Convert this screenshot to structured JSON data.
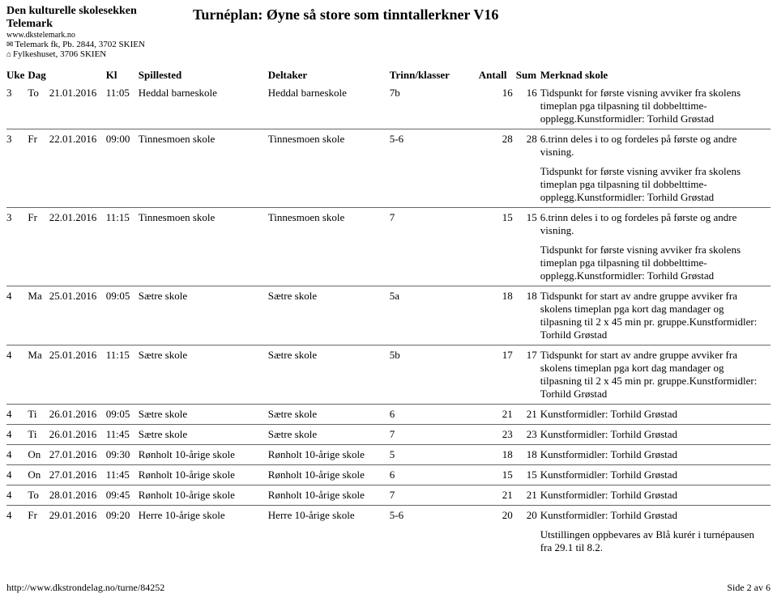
{
  "header": {
    "org_name": "Den kulturelle skolesekken Telemark",
    "url": "www.dkstelemark.no",
    "addr1_sym": "✉",
    "addr1": "Telemark fk, Pb. 2844, 3702 SKIEN",
    "addr2_sym": "⌂",
    "addr2": "Fylkeshuset, 3706 SKIEN",
    "title": "Turnéplan: Øyne så store som tinntallerkner V16"
  },
  "columns": {
    "uke": "Uke",
    "dag": "Dag",
    "kl": "Kl",
    "spillested": "Spillested",
    "deltaker": "Deltaker",
    "trinn": "Trinn/klasser",
    "antall": "Antall",
    "sum": "Sum",
    "merknad": "Merknad skole"
  },
  "rows": [
    {
      "uke": "3",
      "dag": "To",
      "dato": "21.01.2016",
      "kl": "11:05",
      "spillested": "Heddal barneskole",
      "deltaker": "Heddal barneskole",
      "trinn": "7b",
      "antall": "16",
      "sum": "16",
      "merknad": [
        "Tidspunkt for første visning avviker fra skolens timeplan pga tilpasning til dobbelttime-opplegg.Kunstformidler: Torhild Grøstad"
      ]
    },
    {
      "uke": "3",
      "dag": "Fr",
      "dato": "22.01.2016",
      "kl": "09:00",
      "spillested": "Tinnesmoen skole",
      "deltaker": "Tinnesmoen skole",
      "trinn": "5-6",
      "antall": "28",
      "sum": "28",
      "merknad": [
        "6.trinn deles i to og fordeles på første og andre visning.",
        "Tidspunkt for første visning avviker fra skolens timeplan pga tilpasning til dobbelttime-opplegg.Kunstformidler: Torhild Grøstad"
      ]
    },
    {
      "uke": "3",
      "dag": "Fr",
      "dato": "22.01.2016",
      "kl": "11:15",
      "spillested": "Tinnesmoen skole",
      "deltaker": "Tinnesmoen skole",
      "trinn": "7",
      "antall": "15",
      "sum": "15",
      "merknad": [
        "6.trinn deles i to og fordeles på første og andre visning.",
        "Tidspunkt for første visning avviker fra skolens timeplan pga tilpasning til dobbelttime-opplegg.Kunstformidler: Torhild Grøstad"
      ]
    },
    {
      "uke": "4",
      "dag": "Ma",
      "dato": "25.01.2016",
      "kl": "09:05",
      "spillested": "Sætre skole",
      "deltaker": "Sætre skole",
      "trinn": "5a",
      "antall": "18",
      "sum": "18",
      "merknad": [
        "Tidspunkt for start av andre gruppe avviker fra skolens timeplan pga kort dag mandager og tilpasning til 2 x 45 min pr. gruppe.Kunstformidler: Torhild Grøstad"
      ]
    },
    {
      "uke": "4",
      "dag": "Ma",
      "dato": "25.01.2016",
      "kl": "11:15",
      "spillested": "Sætre skole",
      "deltaker": "Sætre skole",
      "trinn": "5b",
      "antall": "17",
      "sum": "17",
      "merknad": [
        "Tidspunkt for start av andre gruppe avviker fra skolens timeplan pga kort dag mandager og tilpasning til 2 x 45 min pr. gruppe.Kunstformidler: Torhild Grøstad"
      ]
    },
    {
      "uke": "4",
      "dag": "Ti",
      "dato": "26.01.2016",
      "kl": "09:05",
      "spillested": "Sætre skole",
      "deltaker": "Sætre skole",
      "trinn": "6",
      "antall": "21",
      "sum": "21",
      "merknad": [
        "Kunstformidler: Torhild Grøstad"
      ]
    },
    {
      "uke": "4",
      "dag": "Ti",
      "dato": "26.01.2016",
      "kl": "11:45",
      "spillested": "Sætre skole",
      "deltaker": "Sætre skole",
      "trinn": "7",
      "antall": "23",
      "sum": "23",
      "merknad": [
        "Kunstformidler: Torhild Grøstad"
      ]
    },
    {
      "uke": "4",
      "dag": "On",
      "dato": "27.01.2016",
      "kl": "09:30",
      "spillested": "Rønholt 10-årige skole",
      "deltaker": "Rønholt 10-årige skole",
      "trinn": "5",
      "antall": "18",
      "sum": "18",
      "merknad": [
        "Kunstformidler: Torhild Grøstad"
      ]
    },
    {
      "uke": "4",
      "dag": "On",
      "dato": "27.01.2016",
      "kl": "11:45",
      "spillested": "Rønholt 10-årige skole",
      "deltaker": "Rønholt 10-årige skole",
      "trinn": "6",
      "antall": "15",
      "sum": "15",
      "merknad": [
        "Kunstformidler: Torhild Grøstad"
      ]
    },
    {
      "uke": "4",
      "dag": "To",
      "dato": "28.01.2016",
      "kl": "09:45",
      "spillested": "Rønholt 10-årige skole",
      "deltaker": "Rønholt 10-årige skole",
      "trinn": "7",
      "antall": "21",
      "sum": "21",
      "merknad": [
        "Kunstformidler: Torhild Grøstad"
      ]
    },
    {
      "uke": "4",
      "dag": "Fr",
      "dato": "29.01.2016",
      "kl": "09:20",
      "spillested": "Herre 10-årige skole",
      "deltaker": "Herre 10-årige skole",
      "trinn": "5-6",
      "antall": "20",
      "sum": "20",
      "merknad": [
        "Kunstformidler: Torhild Grøstad",
        "Utstillingen oppbevares av Blå kurér i turnépausen fra 29.1 til 8.2."
      ]
    }
  ],
  "footer": {
    "url": "http://www.dkstrondelag.no/turne/84252",
    "page": "Side 2 av 6"
  }
}
